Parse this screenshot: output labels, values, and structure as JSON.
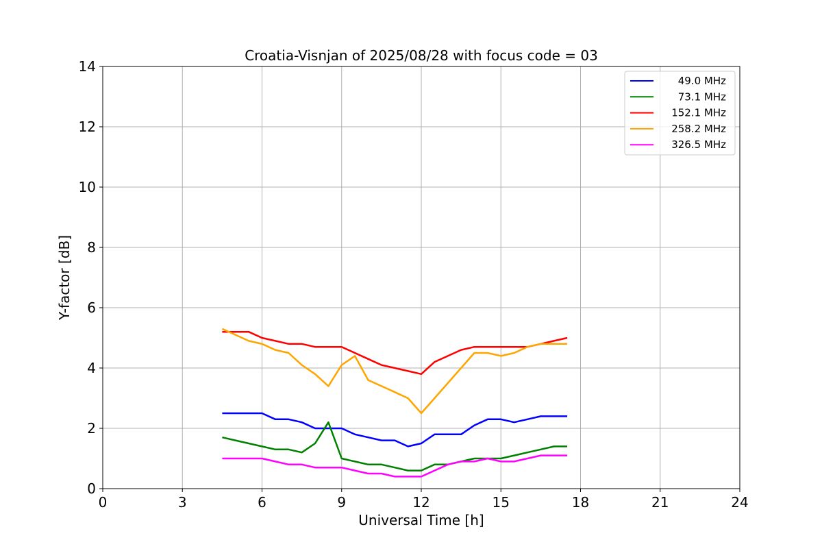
{
  "chart_data": {
    "type": "line",
    "title": "Croatia-Visnjan of 2025/08/28 with focus code = 03",
    "xlabel": "Universal Time [h]",
    "ylabel": "Y-factor [dB]",
    "xlim": [
      0,
      24
    ],
    "ylim": [
      0,
      14
    ],
    "xticks": [
      0,
      3,
      6,
      9,
      12,
      15,
      18,
      21,
      24
    ],
    "yticks": [
      0,
      2,
      4,
      6,
      8,
      10,
      12,
      14
    ],
    "grid": true,
    "legend_position": "top-right",
    "series": [
      {
        "name": "49.0 MHz",
        "color": "#0000ff",
        "x": [
          4.5,
          5.0,
          6.0,
          6.5,
          7.0,
          7.5,
          8.0,
          8.5,
          9.0,
          9.5,
          10.0,
          10.5,
          11.0,
          11.5,
          12.0,
          12.5,
          13.0,
          13.5,
          14.0,
          14.5,
          15.0,
          15.5,
          16.0,
          16.5,
          17.0,
          17.5
        ],
        "y": [
          2.5,
          2.5,
          2.5,
          2.3,
          2.3,
          2.2,
          2.0,
          2.0,
          2.0,
          1.8,
          1.7,
          1.6,
          1.6,
          1.4,
          1.5,
          1.8,
          1.8,
          1.8,
          2.1,
          2.3,
          2.3,
          2.2,
          2.3,
          2.4,
          2.4,
          2.4
        ]
      },
      {
        "name": "73.1 MHz",
        "color": "#008000",
        "x": [
          4.5,
          5.0,
          5.5,
          6.0,
          6.5,
          7.0,
          7.5,
          8.0,
          8.5,
          9.0,
          9.5,
          10.0,
          10.5,
          11.0,
          11.5,
          12.0,
          12.5,
          13.0,
          13.5,
          14.0,
          14.5,
          15.0,
          15.5,
          16.0,
          16.5,
          17.0,
          17.5
        ],
        "y": [
          1.7,
          1.6,
          1.5,
          1.4,
          1.3,
          1.3,
          1.2,
          1.5,
          2.2,
          1.0,
          0.9,
          0.8,
          0.8,
          0.7,
          0.6,
          0.6,
          0.8,
          0.8,
          0.9,
          1.0,
          1.0,
          1.0,
          1.1,
          1.2,
          1.3,
          1.4,
          1.4
        ]
      },
      {
        "name": "152.1 MHz",
        "color": "#ff0000",
        "x": [
          4.5,
          5.0,
          5.5,
          6.0,
          6.5,
          7.0,
          7.5,
          8.0,
          8.5,
          9.0,
          9.5,
          10.0,
          10.5,
          11.0,
          11.5,
          12.0,
          12.5,
          13.0,
          13.5,
          14.0,
          14.5,
          15.0,
          15.5,
          16.0,
          16.5,
          17.0,
          17.5
        ],
        "y": [
          5.2,
          5.2,
          5.2,
          5.0,
          4.9,
          4.8,
          4.8,
          4.7,
          4.7,
          4.7,
          4.5,
          4.3,
          4.1,
          4.0,
          3.9,
          3.8,
          4.2,
          4.4,
          4.6,
          4.7,
          4.7,
          4.7,
          4.7,
          4.7,
          4.8,
          4.9,
          5.0
        ]
      },
      {
        "name": "258.2 MHz",
        "color": "#ffa500",
        "x": [
          4.5,
          5.0,
          5.5,
          6.0,
          6.5,
          7.0,
          7.5,
          8.0,
          8.5,
          9.0,
          9.5,
          10.0,
          10.5,
          11.0,
          11.5,
          12.0,
          12.5,
          13.0,
          13.5,
          14.0,
          14.5,
          15.0,
          15.5,
          16.0,
          16.5,
          17.0,
          17.5
        ],
        "y": [
          5.3,
          5.1,
          4.9,
          4.8,
          4.6,
          4.5,
          4.1,
          3.8,
          3.4,
          4.1,
          4.4,
          3.6,
          3.4,
          3.2,
          3.0,
          2.5,
          3.0,
          3.5,
          4.0,
          4.5,
          4.5,
          4.4,
          4.5,
          4.7,
          4.8,
          4.8,
          4.8
        ]
      },
      {
        "name": "326.5 MHz",
        "color": "#ff00ff",
        "x": [
          4.5,
          5.0,
          5.5,
          6.0,
          6.5,
          7.0,
          7.5,
          8.0,
          8.5,
          9.0,
          9.5,
          10.0,
          10.5,
          11.0,
          11.5,
          12.0,
          12.5,
          13.0,
          13.5,
          14.0,
          14.5,
          15.0,
          15.5,
          16.0,
          16.5,
          17.0,
          17.5
        ],
        "y": [
          1.0,
          1.0,
          1.0,
          1.0,
          0.9,
          0.8,
          0.8,
          0.7,
          0.7,
          0.7,
          0.6,
          0.5,
          0.5,
          0.4,
          0.4,
          0.4,
          0.6,
          0.8,
          0.9,
          0.9,
          1.0,
          0.9,
          0.9,
          1.0,
          1.1,
          1.1,
          1.1
        ]
      }
    ]
  }
}
